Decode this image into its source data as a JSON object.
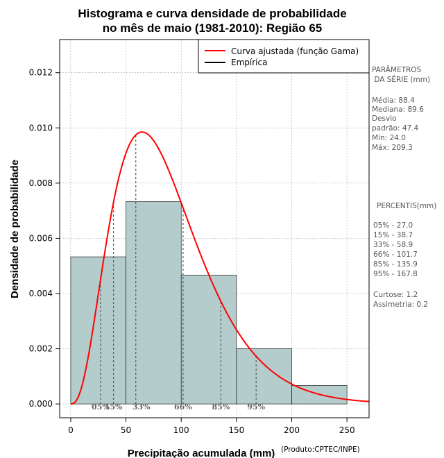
{
  "chart_data": {
    "type": "bar",
    "title": [
      "Histograma e curva densidade de probabilidade",
      "no mês de maio (1981-2010): Região 65"
    ],
    "xlabel": "Precipitação acumulada (mm)",
    "ylabel": "Densidade de probabilidade",
    "xlim": [
      -10,
      270
    ],
    "ylim": [
      -0.0005,
      0.0132
    ],
    "x_ticks": [
      0,
      50,
      100,
      150,
      200,
      250
    ],
    "y_ticks": [
      0.0,
      0.002,
      0.004,
      0.006,
      0.008,
      0.01,
      0.012
    ],
    "y_tick_labels": [
      "0.000",
      "0.002",
      "0.004",
      "0.006",
      "0.008",
      "0.010",
      "0.012"
    ],
    "grid": true,
    "bins": [
      {
        "x0": 0,
        "x1": 50,
        "density": 0.00533
      },
      {
        "x0": 50,
        "x1": 100,
        "density": 0.00733
      },
      {
        "x0": 100,
        "x1": 150,
        "density": 0.00467
      },
      {
        "x0": 150,
        "x1": 200,
        "density": 0.002
      },
      {
        "x0": 200,
        "x1": 250,
        "density": 0.00067
      }
    ],
    "gamma_fit": {
      "shape": 3.7,
      "scale": 23.9
    },
    "percentile_markers": [
      {
        "label": "05%",
        "x": 27.0
      },
      {
        "label": "15%",
        "x": 38.7
      },
      {
        "label": "33%",
        "x": 58.9
      },
      {
        "label": "66%",
        "x": 101.7
      },
      {
        "label": "85%",
        "x": 135.9
      },
      {
        "label": "95%",
        "x": 167.8
      }
    ],
    "legend": {
      "position": "top-right",
      "entries": [
        {
          "label": "Curva ajustada (função Gama)",
          "color": "#ff0000"
        },
        {
          "label": "Empírica",
          "color": "#000000"
        }
      ]
    },
    "colors": {
      "bars": "#b4cccc",
      "curve": "#ff0000",
      "grid": "#aaaaaa",
      "marker": "#555555"
    }
  },
  "stats_panel": {
    "heading": [
      "PARÂMETROS",
      " DA SÉRIE (mm)"
    ],
    "lines": [
      "Média:  88.4",
      "Mediana:  89.6",
      "Desvio",
      "padrão:  47.4",
      "Mín:  24.0",
      "Máx:  209.3"
    ],
    "percentiles_heading": "PERCENTIS(mm)",
    "percentile_lines": [
      "05% -  27.0",
      "15% -  38.7",
      "33% -  58.9",
      "66% -  101.7",
      "85% -  135.9",
      "95% -  167.8"
    ],
    "moment_lines": [
      "Curtose:  1.2",
      "Assimetria:  0.2"
    ]
  },
  "credit": "(Produto:CPTEC/INPE)"
}
